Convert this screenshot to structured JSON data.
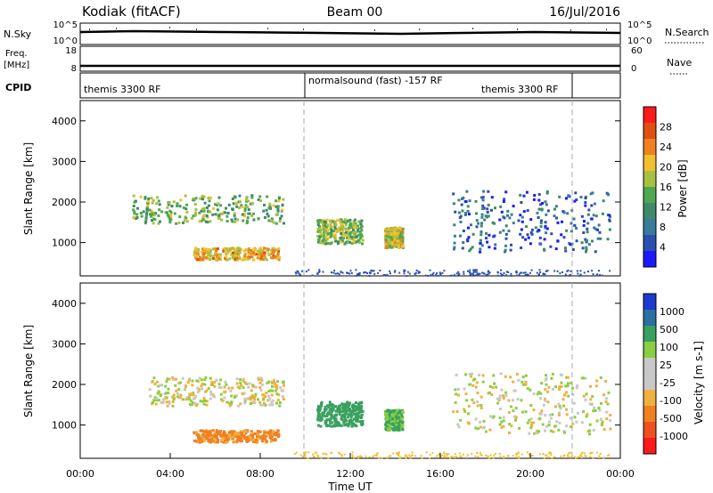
{
  "header": {
    "title": "Kodiak (fitACF)",
    "beam": "Beam 00",
    "date": "16/Jul/2016"
  },
  "noise_panel": {
    "left_label": "N.Sky",
    "right_label": "N.Search",
    "left_ticks": [
      "10^5",
      "10^0"
    ],
    "right_ticks": [
      "10^5",
      "10^0"
    ]
  },
  "freq_panel": {
    "left_label_1": "Freq.",
    "left_label_2": "[MHz]",
    "right_label": "Nave",
    "left_ticks": [
      "18",
      "8"
    ],
    "right_ticks": [
      "60",
      "0"
    ]
  },
  "cpid_panel": {
    "label": "CPID",
    "segments": [
      "themis 3300 RF",
      "normalsound (fast) -157 RF",
      "themis 3300 RF"
    ]
  },
  "colors": {
    "power_scale": [
      "#1a1aff",
      "#2a4fb0",
      "#3a7a9a",
      "#3f8a6a",
      "#4fa84f",
      "#a8c040",
      "#f0c030",
      "#f08020",
      "#e05010",
      "#ff1a1a"
    ],
    "velocity_scale": [
      "#ff1a1a",
      "#f05020",
      "#f08020",
      "#f0b040",
      "#c8c8c8",
      "#c8c8c8",
      "#8acf40",
      "#3aa060",
      "#2a70a0",
      "#1a3ad0"
    ]
  },
  "chart_data": [
    {
      "type": "heatmap",
      "ylabel": "Slant Range [km]",
      "ylim": [
        180,
        4500
      ],
      "y_ticks": [
        "1000",
        "2000",
        "3000",
        "4000"
      ],
      "x_ticks": [
        "00:00",
        "04:00",
        "08:00",
        "12:00",
        "16:00",
        "20:00",
        "00:00"
      ],
      "colorbar_label": "Power [dB]",
      "colorbar_ticks": [
        "4",
        "8",
        "12",
        "16",
        "20",
        "24",
        "28"
      ],
      "colorbar_range": [
        0,
        30
      ],
      "regions": [
        {
          "t": [
            2.3,
            9.0
          ],
          "r": [
            1500,
            2200
          ],
          "value": 14
        },
        {
          "t": [
            5.0,
            8.8
          ],
          "r": [
            600,
            900
          ],
          "value": 20
        },
        {
          "t": [
            10.5,
            12.5
          ],
          "r": [
            1000,
            1600
          ],
          "value": 15
        },
        {
          "t": [
            13.5,
            14.3
          ],
          "r": [
            900,
            1400
          ],
          "value": 18
        },
        {
          "t": [
            16.5,
            23.5
          ],
          "r": [
            800,
            2300
          ],
          "value": 6
        }
      ]
    },
    {
      "type": "heatmap",
      "ylabel": "Slant Range [km]",
      "xlabel": "Time UT",
      "ylim": [
        180,
        4500
      ],
      "y_ticks": [
        "1000",
        "2000",
        "3000",
        "4000"
      ],
      "x_ticks": [
        "00:00",
        "04:00",
        "08:00",
        "12:00",
        "16:00",
        "20:00",
        "00:00"
      ],
      "colorbar_label": "Velocity [m s-1]",
      "colorbar_ticks": [
        "1000",
        "500",
        "100",
        "25",
        "-25",
        "-100",
        "-500",
        "-1000"
      ],
      "regions": [
        {
          "t": [
            3.0,
            9.0
          ],
          "r": [
            1500,
            2200
          ],
          "value": 0
        },
        {
          "t": [
            5.0,
            8.8
          ],
          "r": [
            600,
            900
          ],
          "value": -150
        },
        {
          "t": [
            10.5,
            12.5
          ],
          "r": [
            1000,
            1600
          ],
          "value": 200
        },
        {
          "t": [
            13.5,
            14.3
          ],
          "r": [
            900,
            1400
          ],
          "value": 120
        },
        {
          "t": [
            16.5,
            23.5
          ],
          "r": [
            800,
            2300
          ],
          "value": 0
        }
      ]
    }
  ]
}
